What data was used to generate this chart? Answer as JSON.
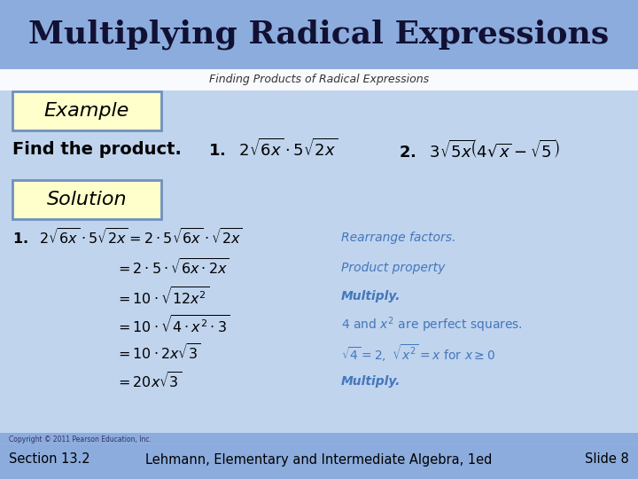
{
  "title": "Multiplying Radical Expressions",
  "subtitle": "Finding Products of Radical Expressions",
  "header_bg": "#8cacdd",
  "body_bg": "#c0d4ee",
  "footer_bg": "#8cacdd",
  "footer_copyright": "Copyright © 2011 Pearson Education, Inc.",
  "footer_left": "Section 13.2",
  "footer_center": "Lehmann, Elementary and Intermediate Algebra, 1ed",
  "footer_right": "Slide 8",
  "example_box_bg": "#ffffcc",
  "example_box_border": "#7090c0",
  "example_label": "Example",
  "find_text": "Find the product.",
  "solution_label": "Solution",
  "blue_annotation": "#4477bb",
  "title_color": "#111133",
  "subtitle_color": "#333333"
}
